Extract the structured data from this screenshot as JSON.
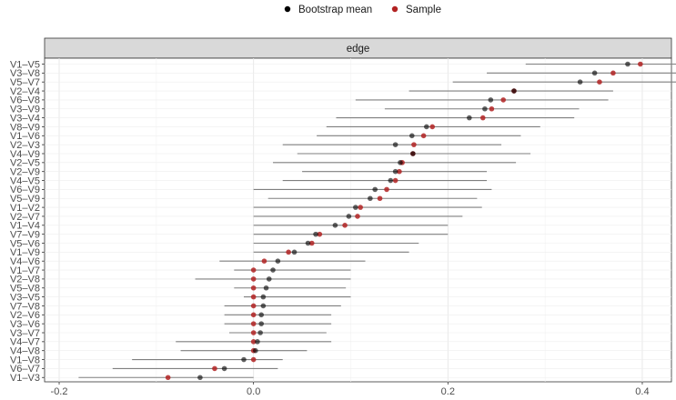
{
  "chart_data": {
    "type": "scatter",
    "facet_label": "edge",
    "legend": {
      "position": "top",
      "entries": [
        {
          "name": "Bootstrap mean",
          "color": "#000000"
        },
        {
          "name": "Sample",
          "color": "#b22222"
        }
      ]
    },
    "xlim": [
      -0.215,
      0.43
    ],
    "xticks": [
      {
        "value": -0.2,
        "label": "-0.2"
      },
      {
        "value": 0.0,
        "label": "0.0"
      },
      {
        "value": 0.2,
        "label": "0.2"
      },
      {
        "value": 0.4,
        "label": "0.4"
      }
    ],
    "grid": true,
    "edges": [
      "V1–V5",
      "V3–V8",
      "V5–V7",
      "V2–V4",
      "V6–V8",
      "V3–V9",
      "V3–V4",
      "V8–V9",
      "V1–V6",
      "V2–V3",
      "V4–V9",
      "V2–V5",
      "V2–V9",
      "V4–V5",
      "V6–V9",
      "V5–V9",
      "V1–V2",
      "V2–V7",
      "V1–V4",
      "V7–V9",
      "V5–V6",
      "V1–V9",
      "V4–V6",
      "V1–V7",
      "V2–V8",
      "V5–V8",
      "V3–V5",
      "V7–V8",
      "V2–V6",
      "V3–V6",
      "V3–V7",
      "V4–V7",
      "V4–V8",
      "V1–V8",
      "V6–V7",
      "V1–V3"
    ],
    "sample": [
      0.398,
      0.37,
      0.356,
      0.268,
      0.257,
      0.245,
      0.236,
      0.184,
      0.175,
      0.165,
      0.164,
      0.153,
      0.15,
      0.146,
      0.137,
      0.13,
      0.11,
      0.107,
      0.094,
      0.068,
      0.06,
      0.036,
      0.011,
      0.0,
      0.0,
      0.0,
      0.0,
      0.0,
      0.0,
      0.0,
      0.0,
      0.0,
      0.0,
      0.0,
      -0.04,
      -0.088
    ],
    "bootstrap_mean": [
      0.385,
      0.351,
      0.336,
      0.268,
      0.244,
      0.238,
      0.222,
      0.178,
      0.163,
      0.146,
      0.164,
      0.151,
      0.146,
      0.141,
      0.125,
      0.12,
      0.105,
      0.098,
      0.084,
      0.064,
      0.056,
      0.042,
      0.025,
      0.02,
      0.016,
      0.013,
      0.01,
      0.01,
      0.008,
      0.008,
      0.007,
      0.004,
      0.002,
      -0.01,
      -0.03,
      -0.055
    ],
    "ci_lower": [
      0.28,
      0.24,
      0.205,
      0.16,
      0.105,
      0.135,
      0.085,
      0.075,
      0.065,
      0.03,
      0.045,
      0.02,
      0.05,
      0.03,
      0.0,
      0.015,
      0.0,
      0.0,
      0.0,
      0.0,
      0.0,
      0.0,
      -0.035,
      -0.02,
      -0.06,
      -0.02,
      -0.01,
      -0.03,
      -0.03,
      -0.03,
      -0.025,
      -0.08,
      -0.075,
      -0.125,
      -0.145,
      -0.18
    ],
    "ci_upper": [
      0.478,
      0.445,
      0.452,
      0.37,
      0.365,
      0.335,
      0.33,
      0.295,
      0.275,
      0.255,
      0.285,
      0.27,
      0.24,
      0.24,
      0.245,
      0.23,
      0.235,
      0.215,
      0.2,
      0.2,
      0.17,
      0.16,
      0.115,
      0.1,
      0.1,
      0.095,
      0.1,
      0.09,
      0.08,
      0.08,
      0.075,
      0.08,
      0.055,
      0.03,
      0.025,
      0.0
    ],
    "xlabel": "",
    "ylabel": ""
  }
}
